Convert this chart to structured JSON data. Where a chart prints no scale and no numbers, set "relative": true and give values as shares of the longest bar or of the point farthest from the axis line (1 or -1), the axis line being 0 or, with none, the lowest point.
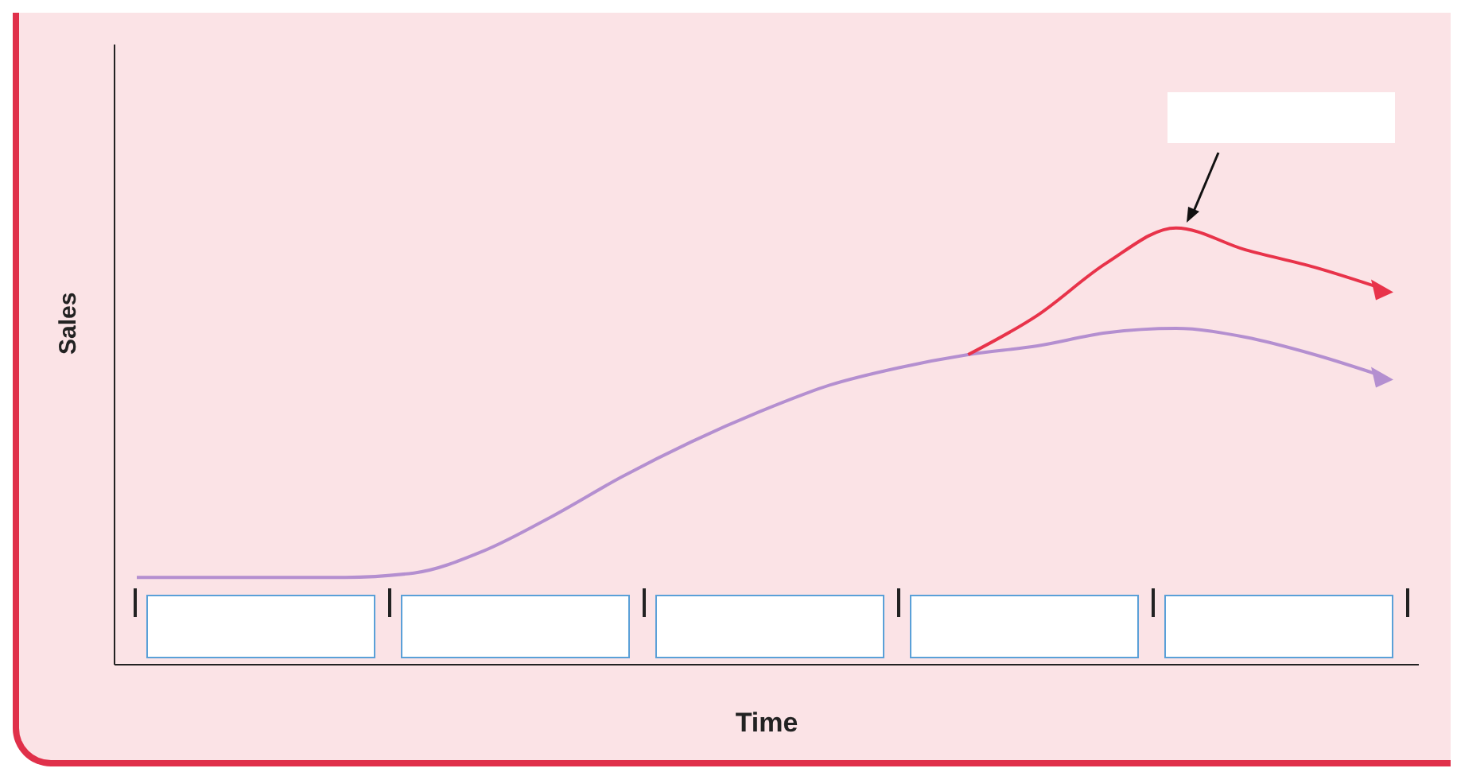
{
  "chart_data": {
    "type": "line",
    "relative": true,
    "xlabel": "Time",
    "ylabel": "Sales",
    "grid": false,
    "legend": false,
    "marker": "none",
    "line_style": "solid",
    "categories": [
      null,
      null,
      null,
      null,
      null,
      null,
      null,
      null,
      null,
      null,
      null,
      null,
      null,
      null,
      null,
      null,
      null,
      null,
      null
    ],
    "series": [
      {
        "color": "#b48fd0",
        "values": [
          0.2,
          0.2,
          0.2,
          0.2,
          0.21,
          0.26,
          0.34,
          0.43,
          0.51,
          0.58,
          0.64,
          0.68,
          0.71,
          0.73,
          0.76,
          0.77,
          0.75,
          0.71,
          0.66
        ]
      },
      {
        "color": "#e8334a",
        "values": [
          null,
          null,
          null,
          null,
          null,
          null,
          null,
          null,
          null,
          null,
          null,
          null,
          0.71,
          0.8,
          0.92,
          1,
          0.95,
          0.91,
          0.86
        ]
      }
    ]
  }
}
